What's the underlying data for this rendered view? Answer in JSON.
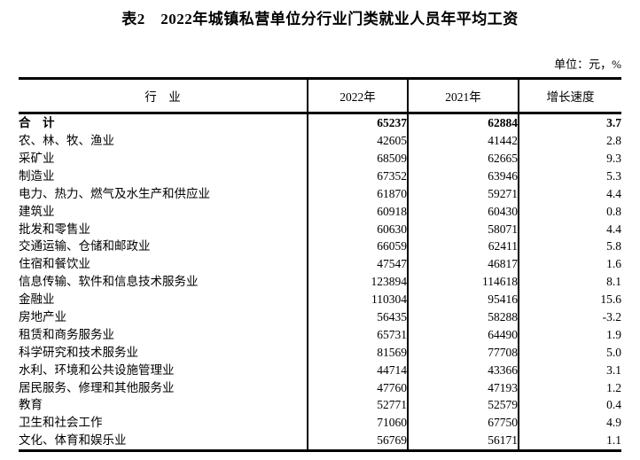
{
  "title": "表2　2022年城镇私营单位分行业门类就业人员年平均工资",
  "unit_label": "单位：元，%",
  "colors": {
    "text": "#000000",
    "background": "#ffffff",
    "border": "#000000"
  },
  "table": {
    "headers": [
      "行　业",
      "2022年",
      "2021年",
      "增长速度"
    ],
    "rows": [
      {
        "industry": "合　计",
        "y2022": "65237",
        "y2021": "62884",
        "growth": "3.7",
        "bold": true
      },
      {
        "industry": "农、林、牧、渔业",
        "y2022": "42605",
        "y2021": "41442",
        "growth": "2.8"
      },
      {
        "industry": "采矿业",
        "y2022": "68509",
        "y2021": "62665",
        "growth": "9.3"
      },
      {
        "industry": "制造业",
        "y2022": "67352",
        "y2021": "63946",
        "growth": "5.3"
      },
      {
        "industry": "电力、热力、燃气及水生产和供应业",
        "y2022": "61870",
        "y2021": "59271",
        "growth": "4.4"
      },
      {
        "industry": "建筑业",
        "y2022": "60918",
        "y2021": "60430",
        "growth": "0.8"
      },
      {
        "industry": "批发和零售业",
        "y2022": "60630",
        "y2021": "58071",
        "growth": "4.4"
      },
      {
        "industry": "交通运输、仓储和邮政业",
        "y2022": "66059",
        "y2021": "62411",
        "growth": "5.8"
      },
      {
        "industry": "住宿和餐饮业",
        "y2022": "47547",
        "y2021": "46817",
        "growth": "1.6"
      },
      {
        "industry": "信息传输、软件和信息技术服务业",
        "y2022": "123894",
        "y2021": "114618",
        "growth": "8.1"
      },
      {
        "industry": "金融业",
        "y2022": "110304",
        "y2021": "95416",
        "growth": "15.6"
      },
      {
        "industry": "房地产业",
        "y2022": "56435",
        "y2021": "58288",
        "growth": "-3.2"
      },
      {
        "industry": "租赁和商务服务业",
        "y2022": "65731",
        "y2021": "64490",
        "growth": "1.9"
      },
      {
        "industry": "科学研究和技术服务业",
        "y2022": "81569",
        "y2021": "77708",
        "growth": "5.0"
      },
      {
        "industry": "水利、环境和公共设施管理业",
        "y2022": "44714",
        "y2021": "43366",
        "growth": "3.1"
      },
      {
        "industry": "居民服务、修理和其他服务业",
        "y2022": "47760",
        "y2021": "47193",
        "growth": "1.2"
      },
      {
        "industry": "教育",
        "y2022": "52771",
        "y2021": "52579",
        "growth": "0.4"
      },
      {
        "industry": "卫生和社会工作",
        "y2022": "71060",
        "y2021": "67750",
        "growth": "4.9"
      },
      {
        "industry": "文化、体育和娱乐业",
        "y2022": "56769",
        "y2021": "56171",
        "growth": "1.1"
      }
    ]
  }
}
